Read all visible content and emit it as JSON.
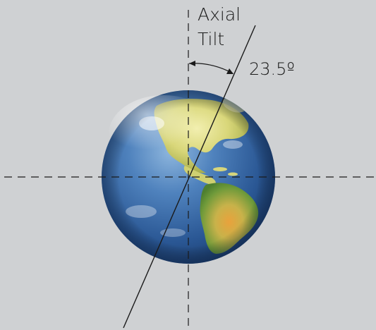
{
  "labels": {
    "title_line1": "Axial",
    "title_line2": "Tilt",
    "angle": "23.5º"
  },
  "colors": {
    "background": "#cfd1d3",
    "ocean": "#2e5f9c",
    "land": "#c8c852",
    "line": "#1a1a1a"
  }
}
